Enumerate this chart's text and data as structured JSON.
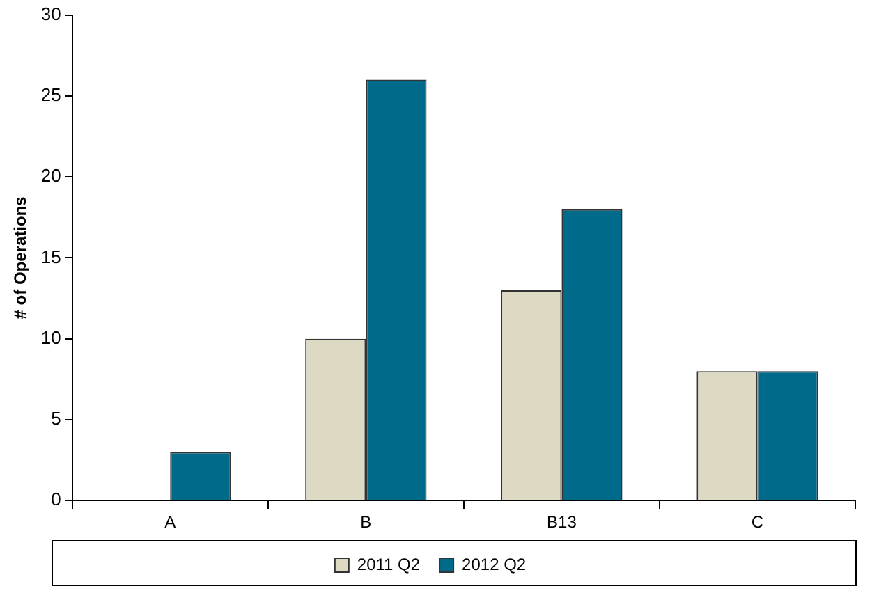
{
  "chart_data": {
    "type": "bar",
    "ylabel": "# of Operations",
    "categories": [
      "A",
      "B",
      "B13",
      "C"
    ],
    "series": [
      {
        "name": "2011 Q2",
        "color": "#ddd9c3",
        "values": [
          null,
          10,
          13,
          8
        ]
      },
      {
        "name": "2012 Q2",
        "color": "#006a8a",
        "values": [
          3,
          26,
          18,
          8
        ]
      }
    ],
    "ylim": [
      0,
      30
    ],
    "yticks": [
      0,
      5,
      10,
      15,
      20,
      25,
      30
    ],
    "grid": false,
    "legend": "bottom"
  }
}
